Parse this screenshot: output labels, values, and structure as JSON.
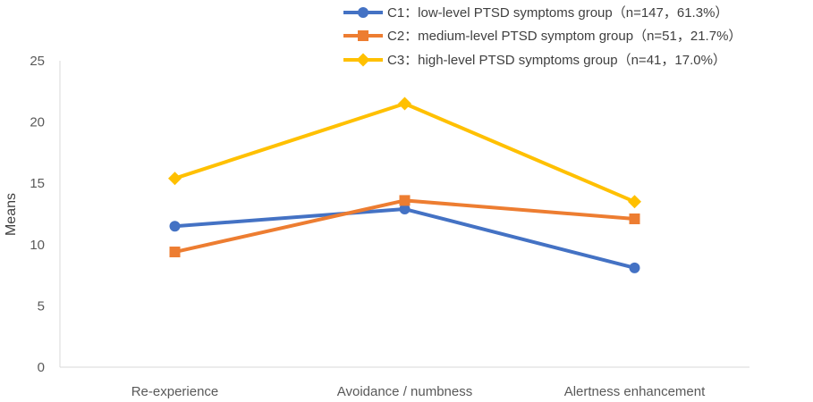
{
  "chart_data": {
    "type": "line",
    "categories": [
      "Re-experience",
      "Avoidance / numbness",
      "Alertness enhancement"
    ],
    "series": [
      {
        "name": "C1：low-level PTSD symptoms group（n=147，61.3%）",
        "values": [
          11.5,
          12.9,
          8.1
        ],
        "color": "#4472C4",
        "marker": "circle"
      },
      {
        "name": "C2：medium-level PTSD symptom group（n=51，21.7%）",
        "values": [
          9.4,
          13.6,
          12.1
        ],
        "color": "#ED7D31",
        "marker": "square"
      },
      {
        "name": "C3：high-level PTSD symptoms group（n=41，17.0%）",
        "values": [
          15.4,
          21.5,
          13.5
        ],
        "color": "#FFC000",
        "marker": "diamond"
      }
    ],
    "title": "",
    "xlabel": "",
    "ylabel": "Means",
    "ylim": [
      0,
      25
    ],
    "yticks": [
      "0",
      "5",
      "10",
      "15",
      "20",
      "25"
    ],
    "grid": false,
    "legend_position": "top-right"
  }
}
